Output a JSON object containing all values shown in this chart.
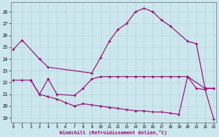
{
  "background_color": "#cce8ee",
  "line_color": "#990077",
  "xlabel": "Windchill (Refroidissement éolien,°C)",
  "yticks": [
    19,
    20,
    21,
    22,
    23,
    24,
    25,
    26,
    27,
    28
  ],
  "xticks": [
    0,
    1,
    2,
    3,
    4,
    5,
    6,
    7,
    8,
    9,
    10,
    11,
    12,
    13,
    14,
    15,
    16,
    17,
    18,
    19,
    20,
    21,
    22,
    23
  ],
  "ylim": [
    18.6,
    28.8
  ],
  "xlim": [
    -0.3,
    23.3
  ],
  "line1_x": [
    0,
    1,
    3,
    4,
    9,
    10,
    11,
    12,
    13,
    14,
    15,
    16,
    17,
    18,
    20,
    21,
    22,
    23
  ],
  "line1_y": [
    24.8,
    25.6,
    24.0,
    23.3,
    22.8,
    24.1,
    25.5,
    26.5,
    27.0,
    28.0,
    28.3,
    28.0,
    27.3,
    26.8,
    25.5,
    25.3,
    21.5,
    21.5
  ],
  "line2_x": [
    0,
    1,
    2,
    3,
    4,
    5,
    7,
    8,
    9,
    10,
    11,
    12,
    13,
    14,
    15,
    16,
    17,
    18,
    19,
    20,
    22,
    23
  ],
  "line2_y": [
    22.2,
    22.2,
    22.2,
    21.0,
    22.3,
    21.0,
    20.9,
    21.5,
    22.3,
    22.5,
    22.5,
    22.5,
    22.5,
    22.5,
    22.5,
    22.5,
    22.5,
    22.5,
    22.5,
    22.5,
    21.5,
    21.5
  ],
  "line3_x": [
    2,
    3,
    4,
    5,
    6,
    7,
    8,
    9,
    10,
    11,
    12,
    13,
    14,
    15,
    16,
    17,
    18,
    19,
    20,
    21,
    22,
    23
  ],
  "line3_y": [
    22.2,
    21.0,
    20.8,
    20.6,
    20.3,
    20.0,
    20.2,
    20.1,
    20.0,
    19.9,
    19.8,
    19.7,
    19.6,
    19.6,
    19.5,
    19.5,
    19.4,
    19.3,
    22.5,
    21.5,
    21.4,
    18.9
  ]
}
